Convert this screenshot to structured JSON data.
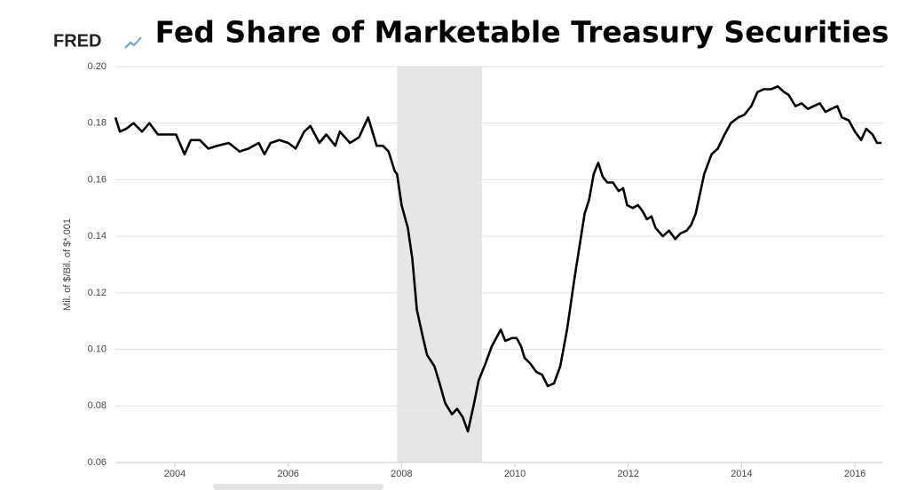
{
  "chart_data": {
    "type": "line",
    "title": "Fed Share of Marketable Treasury Securities",
    "brand": "FRED",
    "ylabel": "Mil. of $/Bil. of $*.001",
    "recessions": [
      [
        2007.92,
        2009.42
      ]
    ],
    "xlim": [
      2002.95,
      2016.5
    ],
    "xticks": [
      2004,
      2006,
      2008,
      2010,
      2012,
      2014,
      2016
    ],
    "ylim": [
      0.06,
      0.2
    ],
    "yticks": [
      0.06,
      0.08,
      {
        "value": 0.1,
        "label": "0.10"
      },
      0.12,
      0.14,
      0.16,
      0.18,
      {
        "value": 0.2,
        "label": "0.20"
      }
    ],
    "grid": true,
    "series": [
      {
        "color": "#000000",
        "x": [
          2002.95,
          2003.03,
          2003.14,
          2003.27,
          2003.42,
          2003.55,
          2003.7,
          2003.86,
          2004.02,
          2004.17,
          2004.28,
          2004.44,
          2004.59,
          2004.75,
          2004.95,
          2005.14,
          2005.3,
          2005.48,
          2005.58,
          2005.69,
          2005.84,
          2006.0,
          2006.13,
          2006.28,
          2006.39,
          2006.55,
          2006.67,
          2006.83,
          2006.91,
          2007.09,
          2007.25,
          2007.41,
          2007.56,
          2007.67,
          2007.77,
          2007.88,
          2007.92,
          2008.0,
          2008.11,
          2008.19,
          2008.27,
          2008.38,
          2008.45,
          2008.58,
          2008.67,
          2008.77,
          2008.89,
          2008.98,
          2009.08,
          2009.17,
          2009.28,
          2009.36,
          2009.48,
          2009.59,
          2009.75,
          2009.83,
          2009.95,
          2010.03,
          2010.11,
          2010.17,
          2010.27,
          2010.38,
          2010.48,
          2010.58,
          2010.69,
          2010.8,
          2010.92,
          2011.05,
          2011.16,
          2011.23,
          2011.31,
          2011.39,
          2011.47,
          2011.55,
          2011.63,
          2011.73,
          2011.83,
          2011.91,
          2011.98,
          2012.08,
          2012.17,
          2012.25,
          2012.33,
          2012.41,
          2012.48,
          2012.61,
          2012.72,
          2012.83,
          2012.92,
          2013.03,
          2013.11,
          2013.19,
          2013.34,
          2013.47,
          2013.58,
          2013.7,
          2013.81,
          2013.94,
          2014.05,
          2014.17,
          2014.28,
          2014.39,
          2014.52,
          2014.64,
          2014.75,
          2014.83,
          2014.95,
          2015.06,
          2015.17,
          2015.27,
          2015.38,
          2015.48,
          2015.58,
          2015.69,
          2015.77,
          2015.89,
          2016.0,
          2016.11,
          2016.2,
          2016.31,
          2016.39,
          2016.47
        ],
        "values": [
          0.182,
          0.177,
          0.178,
          0.18,
          0.177,
          0.18,
          0.176,
          0.176,
          0.176,
          0.169,
          0.174,
          0.174,
          0.171,
          0.172,
          0.173,
          0.17,
          0.171,
          0.173,
          0.169,
          0.173,
          0.174,
          0.173,
          0.171,
          0.177,
          0.179,
          0.173,
          0.176,
          0.172,
          0.177,
          0.173,
          0.175,
          0.182,
          0.172,
          0.172,
          0.17,
          0.163,
          0.162,
          0.151,
          0.143,
          0.132,
          0.114,
          0.104,
          0.098,
          0.094,
          0.088,
          0.081,
          0.077,
          0.079,
          0.076,
          0.071,
          0.081,
          0.089,
          0.095,
          0.101,
          0.107,
          0.103,
          0.104,
          0.104,
          0.101,
          0.097,
          0.095,
          0.092,
          0.091,
          0.087,
          0.088,
          0.094,
          0.107,
          0.125,
          0.139,
          0.148,
          0.153,
          0.162,
          0.166,
          0.161,
          0.159,
          0.159,
          0.156,
          0.157,
          0.151,
          0.15,
          0.151,
          0.149,
          0.146,
          0.147,
          0.143,
          0.14,
          0.142,
          0.139,
          0.141,
          0.142,
          0.144,
          0.148,
          0.162,
          0.169,
          0.171,
          0.176,
          0.18,
          0.182,
          0.183,
          0.186,
          0.191,
          0.192,
          0.192,
          0.193,
          0.191,
          0.19,
          0.186,
          0.187,
          0.185,
          0.186,
          0.187,
          0.184,
          0.185,
          0.186,
          0.182,
          0.181,
          0.177,
          0.174,
          0.178,
          0.176,
          0.173,
          0.173
        ]
      }
    ]
  }
}
